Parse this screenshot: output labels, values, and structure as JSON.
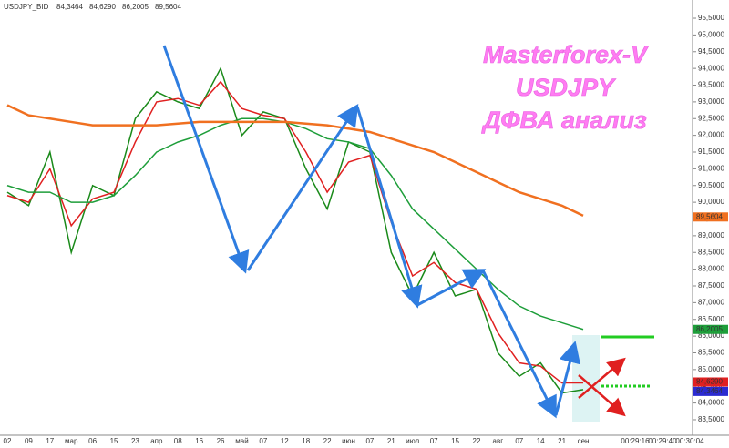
{
  "chart_data": {
    "type": "line",
    "header": {
      "symbol": "USDJPY_BID",
      "readings": [
        {
          "value": 84.3464,
          "label": "84,3464",
          "color": "#2b2bd0"
        },
        {
          "value": 84.629,
          "label": "84,6290",
          "color": "#e02020"
        },
        {
          "value": 86.2005,
          "label": "86,2005",
          "color": "#1e9e3a"
        },
        {
          "value": 89.5604,
          "label": "89,5604",
          "color": "#f07020"
        }
      ]
    },
    "annotation": [
      "Masterforex-V",
      "USDJPY",
      "ДФВА анализ"
    ],
    "categories": [
      "02",
      "09",
      "17",
      "мар",
      "06",
      "15",
      "23",
      "апр",
      "08",
      "16",
      "26",
      "май",
      "07",
      "12",
      "18",
      "22",
      "июн",
      "07",
      "21",
      "июл",
      "07",
      "15",
      "22",
      "авг",
      "07",
      "14",
      "21",
      "сен"
    ],
    "time_labels": [
      "00:29:16",
      "00:29:40",
      "00:30:04"
    ],
    "series": [
      {
        "color": "#1a8a1a",
        "values": [
          90.3,
          89.9,
          91.5,
          88.5,
          90.5,
          90.2,
          92.5,
          93.3,
          93.0,
          92.8,
          94.0,
          92.0,
          92.7,
          92.5,
          91.0,
          89.8,
          91.8,
          91.5,
          88.5,
          87.2,
          88.5,
          87.2,
          87.4,
          85.5,
          84.8,
          85.2,
          84.3,
          84.4
        ]
      },
      {
        "color": "#e02020",
        "values": [
          90.2,
          90.0,
          91.0,
          89.3,
          90.1,
          90.3,
          91.8,
          93.0,
          93.1,
          92.9,
          93.6,
          92.8,
          92.6,
          92.5,
          91.5,
          90.3,
          91.2,
          91.4,
          89.4,
          87.8,
          88.2,
          87.6,
          87.4,
          86.1,
          85.2,
          85.1,
          84.6,
          84.6
        ]
      },
      {
        "color": "#1e9e3a",
        "values": [
          90.5,
          90.3,
          90.3,
          90.0,
          90.0,
          90.2,
          90.8,
          91.5,
          91.8,
          92.0,
          92.3,
          92.5,
          92.5,
          92.4,
          92.2,
          91.9,
          91.8,
          91.6,
          90.8,
          89.8,
          89.2,
          88.6,
          88.0,
          87.4,
          86.9,
          86.6,
          86.4,
          86.2
        ]
      },
      {
        "color": "#f07020",
        "values": [
          92.9,
          92.6,
          92.5,
          92.4,
          92.3,
          92.3,
          92.3,
          92.3,
          92.35,
          92.4,
          92.4,
          92.4,
          92.4,
          92.4,
          92.35,
          92.3,
          92.2,
          92.1,
          91.9,
          91.7,
          91.5,
          91.2,
          90.9,
          90.6,
          90.3,
          90.1,
          89.9,
          89.6
        ]
      }
    ],
    "ylim": [
      83.2,
      95.8
    ],
    "yticks": [
      {
        "value": 83.5,
        "label": "83,5000"
      },
      {
        "value": 84,
        "label": "84,0000"
      },
      {
        "value": 84.5,
        "label": "84,5000"
      },
      {
        "value": 85,
        "label": "85,0000"
      },
      {
        "value": 85.5,
        "label": "85,5000"
      },
      {
        "value": 86,
        "label": "86,0000"
      },
      {
        "value": 86.5,
        "label": "86,5000"
      },
      {
        "value": 87,
        "label": "87,0000"
      },
      {
        "value": 87.5,
        "label": "87,5000"
      },
      {
        "value": 88,
        "label": "88,0000"
      },
      {
        "value": 88.5,
        "label": "88,5000"
      },
      {
        "value": 89,
        "label": "89,0000"
      },
      {
        "value": 89.5,
        "label": "89,5000"
      },
      {
        "value": 90,
        "label": "90,0000"
      },
      {
        "value": 90.5,
        "label": "90,5000"
      },
      {
        "value": 91,
        "label": "91,0000"
      },
      {
        "value": 91.5,
        "label": "91,5000"
      },
      {
        "value": 92,
        "label": "92,0000"
      },
      {
        "value": 92.5,
        "label": "92,5000"
      },
      {
        "value": 93,
        "label": "93,0000"
      },
      {
        "value": 93.5,
        "label": "93,5000"
      },
      {
        "value": 94,
        "label": "94,0000"
      },
      {
        "value": 94.5,
        "label": "94,5000"
      },
      {
        "value": 95,
        "label": "95,0000"
      },
      {
        "value": 95.5,
        "label": "95,5000"
      }
    ]
  }
}
